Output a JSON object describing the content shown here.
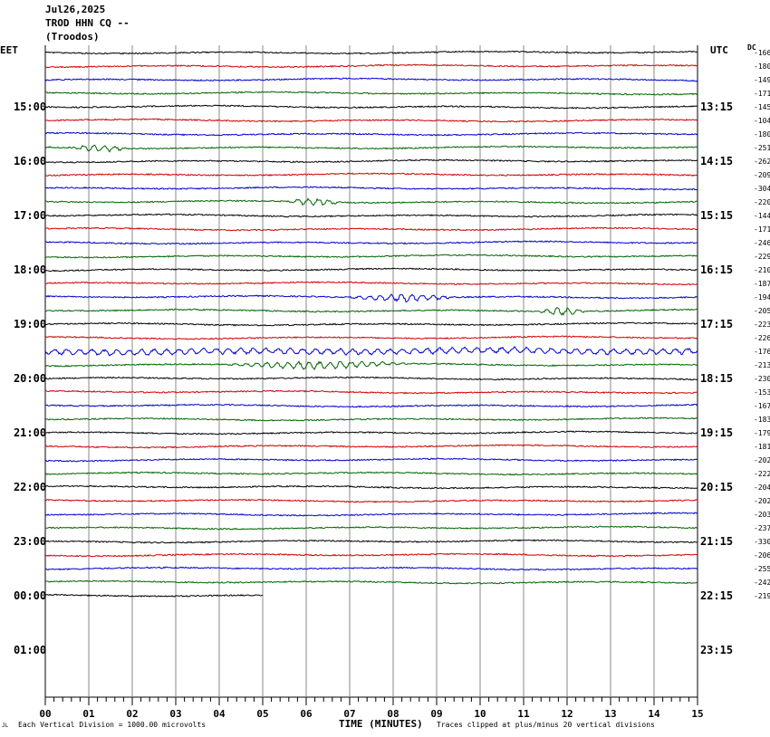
{
  "header": {
    "date": "Jul26,2025",
    "station": "TROD HHN CQ --",
    "location": "(Troodos)"
  },
  "left_tz": "EET",
  "right_tz": "UTC",
  "dc_label": "DC",
  "footer": {
    "corner_mark": "JL",
    "scale_note": "Each Vertical Division = 1000.00 microvolts",
    "xlabel": "TIME (MINUTES)",
    "clip_note": "Traces clipped at plus/minus 20 vertical divisions"
  },
  "chart_data": {
    "type": "line",
    "title": "TROD HHN CQ --",
    "xlabel": "TIME (MINUTES)",
    "xlim": [
      0,
      15
    ],
    "x_ticks": [
      "00",
      "01",
      "02",
      "03",
      "04",
      "05",
      "06",
      "07",
      "08",
      "09",
      "10",
      "11",
      "12",
      "13",
      "14",
      "15"
    ],
    "minute_gridlines": true,
    "trace_colors": [
      "#000000",
      "#d00000",
      "#0000cc",
      "#006400"
    ],
    "rows_per_hour": 4,
    "left_hour_labels": [
      "15:00",
      "16:00",
      "17:00",
      "18:00",
      "19:00",
      "20:00",
      "21:00",
      "22:00",
      "23:00",
      "00:00",
      "01:00"
    ],
    "right_hour_labels": [
      "13:15",
      "14:15",
      "15:15",
      "16:15",
      "17:15",
      "18:15",
      "19:15",
      "20:15",
      "21:15",
      "22:15",
      "23:15"
    ],
    "dc_offsets": [
      -166,
      -180,
      -149,
      -171,
      -145,
      -104,
      -180,
      -251,
      -262,
      -209,
      -304,
      -220,
      -144,
      -171,
      -246,
      -229,
      -210,
      -187,
      -194,
      -205,
      -223,
      -226,
      -176,
      -213,
      -230,
      -153,
      -167,
      -183,
      -179,
      -181,
      -202,
      -222,
      -204,
      -202,
      -203,
      -237,
      -330,
      -206,
      -255,
      -242,
      -219
    ],
    "last_trace_end_minute": 5,
    "events": [
      {
        "trace": 7,
        "start_minute": 0.6,
        "end_minute": 1.9,
        "label": ""
      },
      {
        "trace": 11,
        "start_minute": 5.5,
        "end_minute": 6.9,
        "label": ""
      },
      {
        "trace": 18,
        "start_minute": 7.0,
        "end_minute": 9.5,
        "label": ""
      },
      {
        "trace": 19,
        "start_minute": 11.2,
        "end_minute": 12.5,
        "label": ""
      },
      {
        "trace": 22,
        "start_minute": 0.0,
        "end_minute": 15.0,
        "label": ""
      },
      {
        "trace": 23,
        "start_minute": 4.0,
        "end_minute": 8.5,
        "label": ""
      }
    ]
  }
}
